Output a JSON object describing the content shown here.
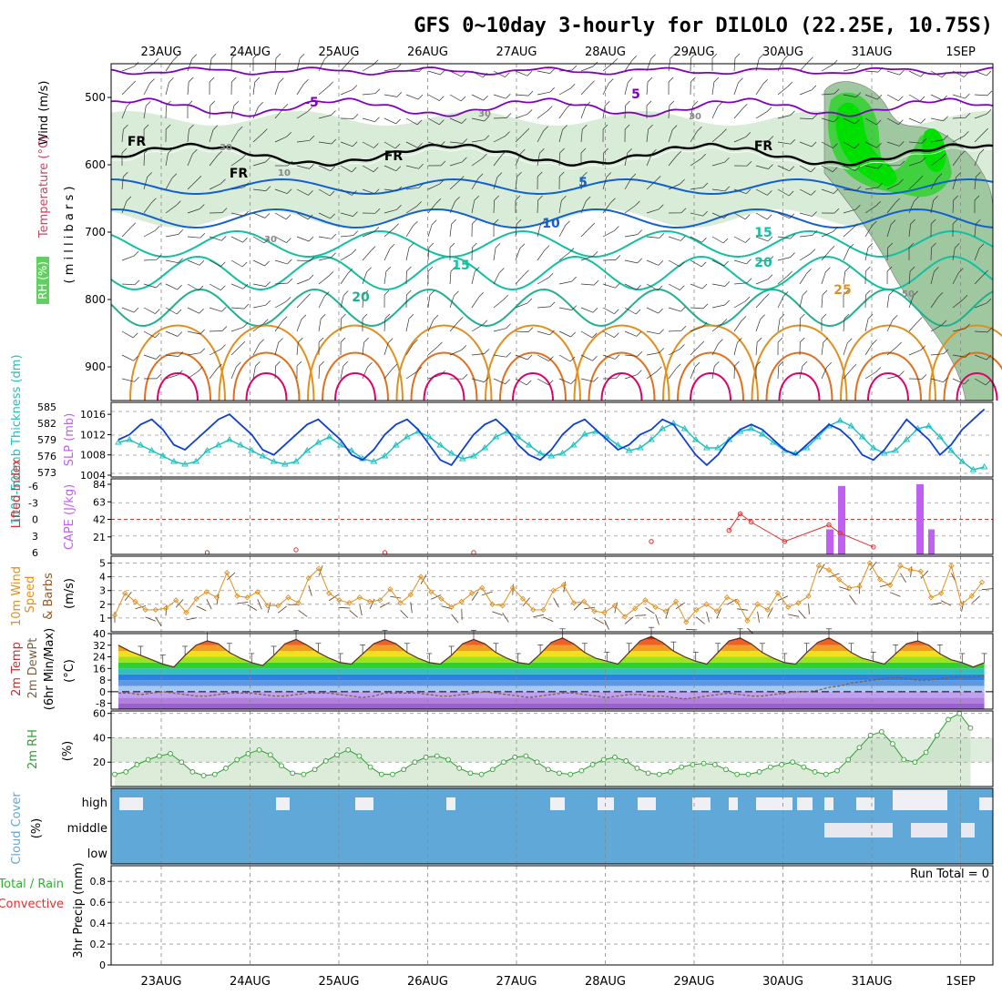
{
  "title": "GFS 0~10day 3-hourly for DILOLO (22.25E, 10.75S)",
  "dates": [
    "23AUG",
    "24AUG",
    "25AUG",
    "26AUG",
    "27AUG",
    "28AUG",
    "29AUG",
    "30AUG",
    "31AUG",
    "1SEP"
  ],
  "colors": {
    "wind": "#c0c0c0",
    "temp_cold": "#8000c0",
    "temp_mid": "#1060d0",
    "temp_warm": "#10c0a0",
    "temp_hot": "#e09020",
    "temp_hotter": "#e07020",
    "temp_hottest": "#e0006a",
    "rh_light": "#d8ecd8",
    "rh_mid": "#a0c8a0",
    "rh_high": "#40d040",
    "rh_max": "#00e000",
    "slp": "#1040d0",
    "thickness": "#20c0c0",
    "cape": "#c060f0",
    "lifted": "#e03030",
    "wind10": "#e09020",
    "cloud": "#60a8d8",
    "rh2m": "#30a030"
  },
  "panels": {
    "upper": {
      "ylabel_parts": [
        "Wind (m/s)",
        "Temperature (°C)",
        "RH (%)"
      ],
      "ylabel_units": "( m i l l i b a r s )",
      "yticks": [
        500,
        600,
        700,
        800,
        900
      ],
      "contour_labels": [
        "-5",
        "5",
        "FR",
        "FR",
        "FR",
        "FR",
        "5",
        "10",
        "15",
        "15",
        "20",
        "20",
        "25",
        "30",
        "30",
        "10",
        "30",
        "30",
        "50"
      ]
    },
    "slp": {
      "ylabel_left": "1000-500mb Thickness (dm)",
      "ylabel_right": "SLP (mb)",
      "yticks_left": [
        585,
        582,
        579,
        576,
        573
      ],
      "yticks_right": [
        1016,
        1012,
        1008,
        1004
      ]
    },
    "cape": {
      "ylabel_left": "Lifted Index",
      "ylabel_right": "CAPE (J/kg)",
      "yticks_left": [
        -6,
        -3,
        0,
        3,
        6
      ],
      "yticks_right": [
        84,
        63,
        42,
        21
      ]
    },
    "wind10": {
      "ylabel": "10m Wind Speed & Barbs (m/s)",
      "ylabel_parts": [
        "10m Wind",
        "Speed",
        "& Barbs",
        "(m/s)"
      ],
      "yticks": [
        1,
        2,
        3,
        4,
        5
      ]
    },
    "temp2m": {
      "ylabel_parts": [
        "2m Temp",
        "2m DewPt",
        "(6hr Min/Max)",
        "(°C)"
      ],
      "yticks": [
        40,
        32,
        24,
        16,
        8,
        0,
        -8
      ]
    },
    "rh2m": {
      "ylabel_parts": [
        "2m RH",
        "(%)"
      ],
      "yticks": [
        60,
        40,
        20
      ]
    },
    "cloud": {
      "ylabel_parts": [
        "Cloud Cover",
        "(%)"
      ],
      "levels": [
        "high",
        "middle",
        "low"
      ]
    },
    "precip": {
      "ylabel_parts": [
        "Total / Rain",
        "Convective",
        "3hr Precip (mm)"
      ],
      "run_total": "Run Total = 0",
      "yticks": [
        0.8,
        0.6,
        0.4,
        0.2,
        0
      ]
    }
  },
  "chart_data": [
    {
      "type": "line",
      "title": "GFS 0~10day 3-hourly for DILOLO (22.25E, 10.75S)",
      "panel": "SLP and 1000-500mb thickness",
      "x": [
        "22AUG12",
        "22AUG15",
        "22AUG18",
        "22AUG21",
        "23AUG00",
        "23AUG03",
        "23AUG06",
        "23AUG09",
        "23AUG12",
        "23AUG15",
        "23AUG18",
        "23AUG21",
        "24AUG00",
        "24AUG03",
        "24AUG06",
        "24AUG09",
        "24AUG12",
        "24AUG15",
        "24AUG18",
        "24AUG21",
        "25AUG00",
        "25AUG03",
        "25AUG06",
        "25AUG09",
        "25AUG12",
        "25AUG15",
        "25AUG18",
        "25AUG21",
        "26AUG00",
        "26AUG03",
        "26AUG06",
        "26AUG09",
        "26AUG12",
        "26AUG15",
        "26AUG18",
        "26AUG21",
        "27AUG00",
        "27AUG03",
        "27AUG06",
        "27AUG09",
        "27AUG12",
        "27AUG15",
        "27AUG18",
        "27AUG21",
        "28AUG00",
        "28AUG03",
        "28AUG06",
        "28AUG09",
        "28AUG12",
        "28AUG15",
        "28AUG18",
        "28AUG21",
        "29AUG00",
        "29AUG03",
        "29AUG06",
        "29AUG09",
        "29AUG12",
        "29AUG15",
        "29AUG18",
        "29AUG21",
        "30AUG00",
        "30AUG03",
        "30AUG06",
        "30AUG09",
        "30AUG12",
        "30AUG15",
        "30AUG18",
        "30AUG21",
        "31AUG00",
        "31AUG03",
        "31AUG06",
        "31AUG09",
        "31AUG12",
        "31AUG15",
        "31AUG18",
        "31AUG21",
        "01SEP00",
        "01SEP03",
        "01SEP06"
      ],
      "series": [
        {
          "axis": "right",
          "unit": "mb",
          "values": [
            1011,
            1012,
            1014,
            1015,
            1013,
            1010,
            1009,
            1011,
            1013,
            1015,
            1016,
            1014,
            1012,
            1009,
            1008,
            1010,
            1012,
            1014,
            1015,
            1013,
            1011,
            1008,
            1007,
            1009,
            1012,
            1014,
            1015,
            1013,
            1010,
            1007,
            1006,
            1009,
            1012,
            1014,
            1015,
            1013,
            1010,
            1008,
            1007,
            1009,
            1012,
            1014,
            1015,
            1013,
            1011,
            1009,
            1010,
            1012,
            1013,
            1015,
            1014,
            1011,
            1008,
            1006,
            1008,
            1011,
            1013,
            1014,
            1013,
            1011,
            1009,
            1008,
            1010,
            1012,
            1014,
            1013,
            1011,
            1008,
            1007,
            1009,
            1012,
            1015,
            1013,
            1011,
            1008,
            1010,
            1013,
            1015,
            1017
          ]
        },
        {
          "axis": "left",
          "unit": "dm",
          "values": [
            578.5,
            579,
            578,
            577,
            576,
            575,
            574.5,
            575,
            577,
            578,
            579,
            578,
            577,
            576,
            575,
            574.5,
            575,
            577,
            578.5,
            579.5,
            578,
            577,
            575.5,
            575,
            576,
            578,
            579.5,
            580.5,
            579.5,
            578,
            576.5,
            575.5,
            576,
            577.5,
            579.5,
            580.5,
            579.5,
            578,
            576.5,
            576,
            576.5,
            578,
            580,
            580.5,
            579.5,
            578,
            577,
            577.5,
            579,
            581,
            582,
            581,
            579,
            577.5,
            577.5,
            579,
            580.5,
            581,
            580,
            578.5,
            577,
            576.5,
            577.5,
            579.5,
            581.5,
            582.5,
            581.5,
            579.5,
            577.5,
            576.5,
            577,
            579,
            581,
            581.5,
            579.5,
            577,
            575,
            573.5,
            574
          ]
        }
      ],
      "ylim": [
        1004,
        1018
      ]
    },
    {
      "type": "bar",
      "panel": "CAPE and Lifted Index",
      "categories": [
        "30AUG12",
        "30AUG15",
        "31AUG12",
        "31AUG15"
      ],
      "series": [
        {
          "name": "CAPE",
          "unit": "J/kg",
          "values": [
            30,
            82,
            84,
            30
          ]
        }
      ],
      "lifted_index": [
        {
          "x": "24AUG12",
          "value": 6
        },
        {
          "x": "25AUG12",
          "value": 5.5
        },
        {
          "x": "26AUG12",
          "value": 6
        },
        {
          "x": "27AUG12",
          "value": 6
        },
        {
          "x": "29AUG12",
          "value": 4
        },
        {
          "x": "30AUG09",
          "value": 2
        },
        {
          "x": "30AUG12",
          "value": -1
        },
        {
          "x": "30AUG15",
          "value": 0.5
        },
        {
          "x": "31AUG00",
          "value": 4
        },
        {
          "x": "31AUG12",
          "value": 1
        },
        {
          "x": "31AUG15",
          "value": 2.5
        },
        {
          "x": "01SEP00",
          "value": 5
        }
      ],
      "ylim": [
        -6,
        6
      ]
    },
    {
      "type": "line",
      "panel": "10m Wind Speed",
      "series": [
        {
          "unit": "m/s",
          "values": [
            1.2,
            2.8,
            2.2,
            1.6,
            1.6,
            1.7,
            2.3,
            1.4,
            2.4,
            2.9,
            2.5,
            4.3,
            2.6,
            2.5,
            2.9,
            1.9,
            1.9,
            2.5,
            2.1,
            3.9,
            4.6,
            2.8,
            2.3,
            2.1,
            2.5,
            2.2,
            2.3,
            3.1,
            2.1,
            2.7,
            4.0,
            2.9,
            2.4,
            1.8,
            2.2,
            2.8,
            3.2,
            2.0,
            1.9,
            3.2,
            2.4,
            1.6,
            1.6,
            3.0,
            3.4,
            2.1,
            2.2,
            1.5,
            1.4,
            1.9,
            1.1,
            1.7,
            2.3,
            1.8,
            1.5,
            2.2,
            0.7,
            1.6,
            2.0,
            1.5,
            2.5,
            2.2,
            0.8,
            2.0,
            1.6,
            2.8,
            1.8,
            2.1,
            2.6,
            4.8,
            4.5,
            3.8,
            3.2,
            3.3,
            5.0,
            3.8,
            3.4,
            4.8,
            4.5,
            4.4,
            2.5,
            2.8,
            4.8,
            2.0,
            2.6,
            3.6
          ]
        }
      ],
      "ylim": [
        0,
        5.5
      ]
    },
    {
      "type": "area",
      "panel": "2m Temperature and Dew Point",
      "series": [
        {
          "name": "2m Temp",
          "unit": "°C",
          "values": [
            32,
            28,
            25,
            22,
            19,
            17,
            25,
            32,
            35,
            33,
            27,
            23,
            20,
            18,
            25,
            33,
            36,
            32,
            27,
            23,
            20,
            19,
            26,
            33,
            36,
            33,
            27,
            23,
            20,
            19,
            25,
            33,
            36,
            33,
            27,
            23,
            20,
            19,
            26,
            34,
            37,
            33,
            27,
            23,
            21,
            19,
            27,
            35,
            38,
            34,
            28,
            24,
            21,
            19,
            27,
            35,
            37,
            33,
            27,
            23,
            20,
            19,
            27,
            34,
            37,
            33,
            27,
            23,
            21,
            19,
            26,
            33,
            35,
            32,
            26,
            22,
            20,
            17,
            20
          ]
        },
        {
          "name": "2m DewPt",
          "unit": "°C",
          "values": [
            -1,
            -1,
            -2,
            -1,
            0,
            -1,
            -2,
            -3,
            -3,
            -2,
            -1,
            -1,
            -1,
            -2,
            -3,
            -3,
            -2,
            -1,
            -1,
            -1,
            -2,
            -3,
            -4,
            -3,
            -1,
            -1,
            -1,
            -1,
            -2,
            -3,
            -3,
            -2,
            -1,
            0,
            -1,
            -2,
            -3,
            -4,
            -3,
            -2,
            -1,
            -1,
            -2,
            -3,
            -4,
            -3,
            -2,
            -2,
            -3,
            -3,
            -4,
            -5,
            -4,
            -3,
            -2,
            -1,
            -2,
            -3,
            -3,
            -2,
            -1,
            0,
            0,
            1,
            3,
            4,
            6,
            7,
            8,
            9,
            10,
            9,
            8,
            8,
            9,
            10,
            10,
            10,
            11
          ]
        }
      ],
      "ylim": [
        -12,
        40
      ]
    },
    {
      "type": "area",
      "panel": "2m RH",
      "series": [
        {
          "unit": "%",
          "values": [
            10,
            12,
            18,
            22,
            25,
            27,
            20,
            12,
            9,
            10,
            15,
            22,
            27,
            30,
            26,
            17,
            11,
            10,
            14,
            21,
            26,
            30,
            25,
            16,
            10,
            10,
            14,
            20,
            24,
            25,
            22,
            15,
            11,
            10,
            14,
            20,
            24,
            25,
            20,
            14,
            11,
            10,
            13,
            18,
            22,
            24,
            21,
            15,
            11,
            10,
            12,
            16,
            18,
            19,
            18,
            14,
            10,
            10,
            12,
            16,
            18,
            20,
            16,
            12,
            10,
            13,
            22,
            32,
            42,
            45,
            35,
            22,
            20,
            28,
            42,
            55,
            60,
            48
          ]
        }
      ],
      "ylim": [
        0,
        62
      ]
    },
    {
      "type": "bar",
      "panel": "3hr Precip",
      "series": [
        {
          "unit": "mm",
          "values": []
        }
      ],
      "ylim": [
        0,
        1.0
      ]
    }
  ]
}
